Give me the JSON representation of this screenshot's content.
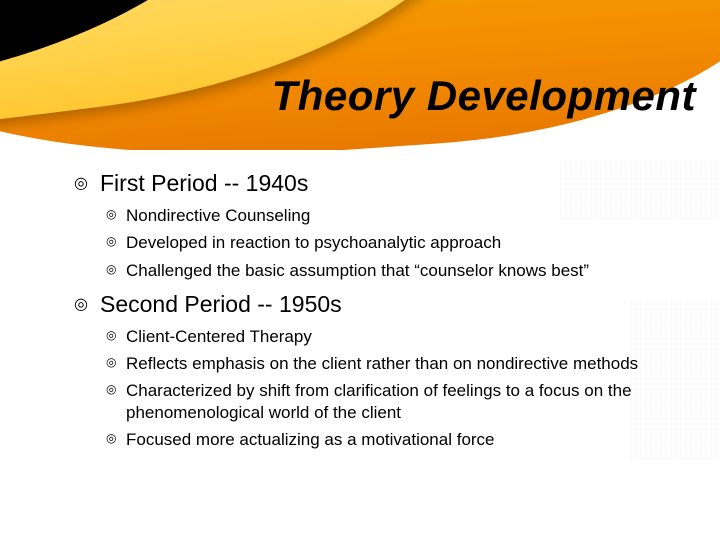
{
  "colors": {
    "background": "#ffffff",
    "text": "#000000",
    "swoosh_orange_top": "#f6a500",
    "swoosh_orange_bottom": "#e87a00",
    "swoosh_yellow_top": "#ffe176",
    "swoosh_yellow_bottom": "#ffc833",
    "swoosh_black": "#000000"
  },
  "typography": {
    "title_font": "Impact",
    "title_size_pt": 32,
    "title_italic": true,
    "body_font": "Verdana",
    "lvl1_size_pt": 17,
    "lvl2_size_pt": 13
  },
  "title": "Theory Development",
  "bullets": [
    {
      "label": "First Period -- 1940s",
      "children": [
        "Nondirective Counseling",
        "Developed in reaction to psychoanalytic approach",
        "Challenged the basic assumption that “counselor knows best”"
      ]
    },
    {
      "label": "Second Period -- 1950s",
      "children": [
        "Client-Centered Therapy",
        "Reflects emphasis on the client rather than on nondirective methods",
        "Characterized by shift from clarification of feelings to a focus on the phenomenological world of the client",
        "Focused more actualizing as a motivational force"
      ]
    }
  ]
}
